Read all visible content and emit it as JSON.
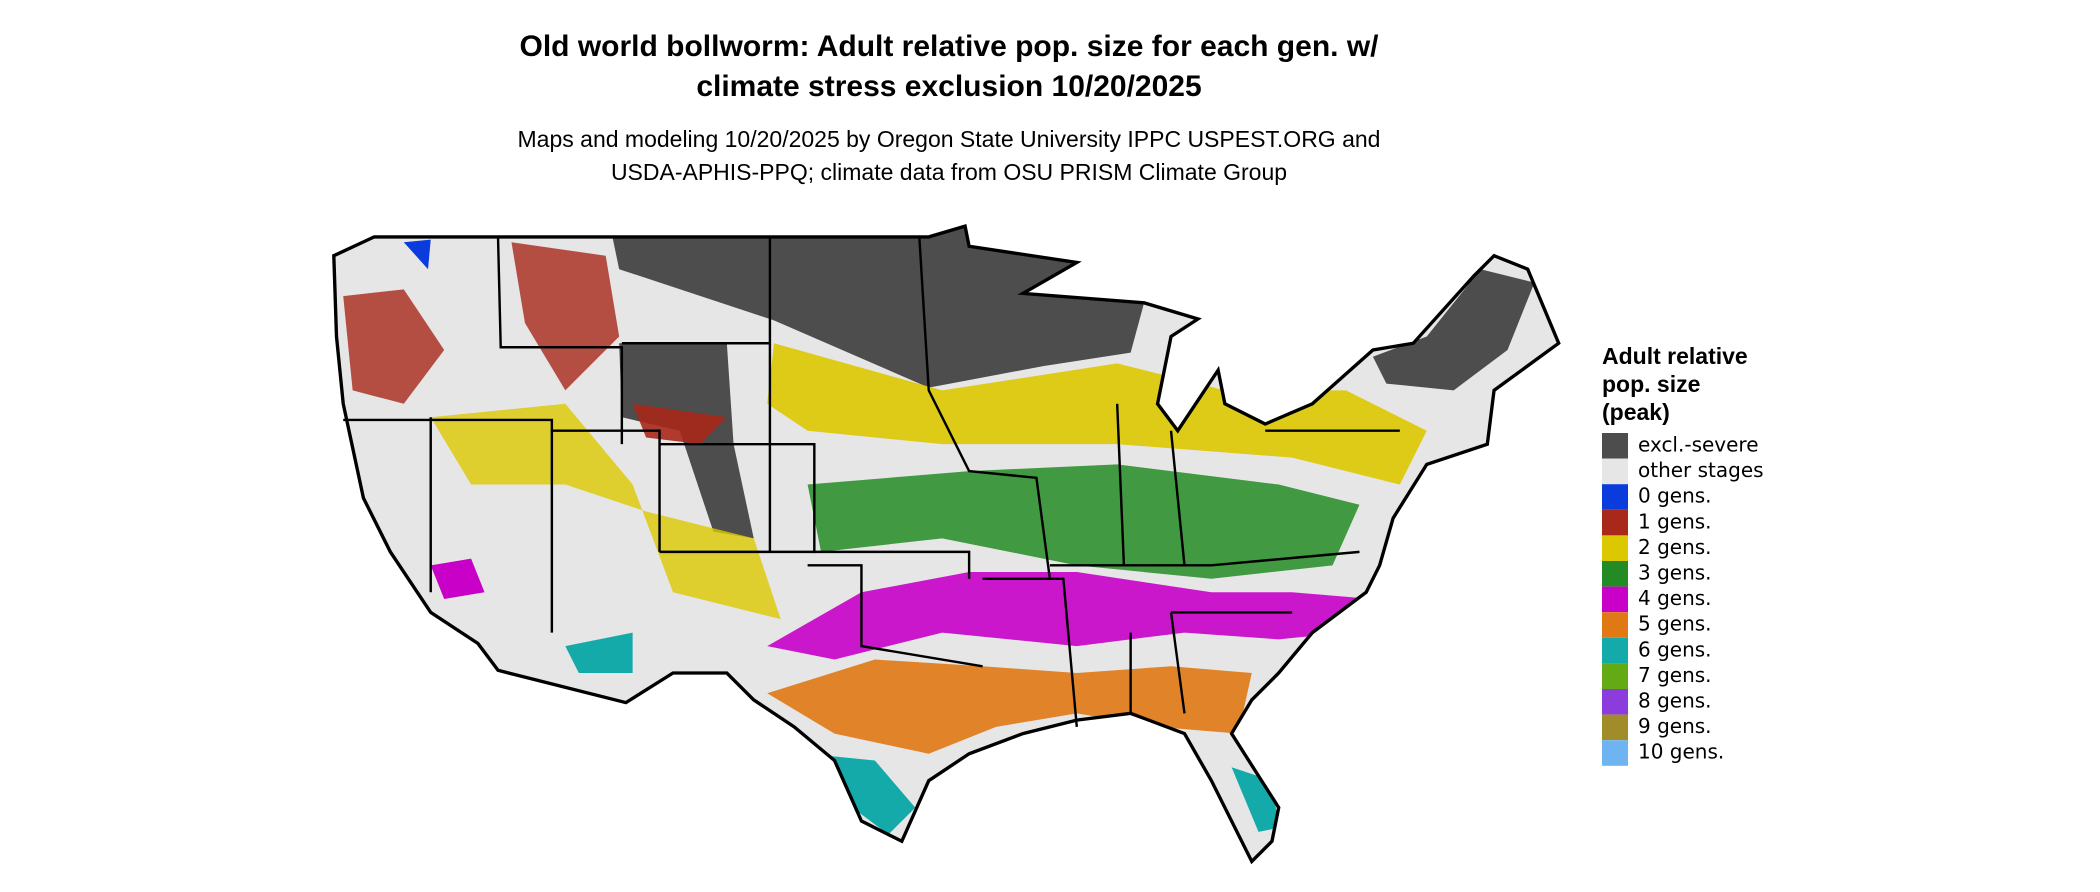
{
  "title": [
    "Old world bollworm: Adult relative pop. size for each gen. w/",
    "climate stress exclusion 10/20/2025"
  ],
  "subtitle": [
    "Maps and modeling 10/20/2025 by Oregon State University IPPC USPEST.ORG and",
    "USDA-APHIS-PPQ; climate data from OSU PRISM Climate Group"
  ],
  "legend": {
    "title": [
      "Adult relative",
      "pop. size",
      "(peak)"
    ],
    "items": [
      {
        "label": "excl.-severe",
        "color": "#4d4d4d"
      },
      {
        "label": "other stages",
        "color": "#e6e6e6"
      },
      {
        "label": "0 gens.",
        "color": "#0a3bdc"
      },
      {
        "label": "1 gens.",
        "color": "#a8281a"
      },
      {
        "label": "2 gens.",
        "color": "#dcc800"
      },
      {
        "label": "3 gens.",
        "color": "#238b23"
      },
      {
        "label": "4 gens.",
        "color": "#c800c8"
      },
      {
        "label": "5 gens.",
        "color": "#e07814"
      },
      {
        "label": "6 gens.",
        "color": "#14aaaa"
      },
      {
        "label": "7 gens.",
        "color": "#64aa14"
      },
      {
        "label": "8 gens.",
        "color": "#8c3cdc"
      },
      {
        "label": "9 gens.",
        "color": "#a08c28"
      },
      {
        "label": "10 gens.",
        "color": "#6eb4f0"
      }
    ]
  }
}
